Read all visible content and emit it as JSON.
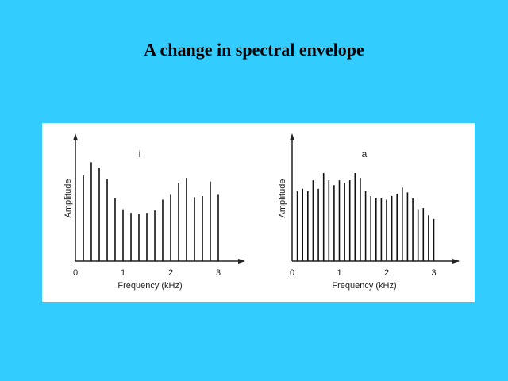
{
  "slide": {
    "title": "A change in spectral envelope",
    "background": "#33ccff"
  },
  "chart_data": [
    {
      "type": "bar",
      "panel_label": "i",
      "xlabel": "Frequency (kHz)",
      "ylabel": "Amplitude",
      "xlim": [
        0,
        3.5
      ],
      "ylim": [
        0,
        10
      ],
      "xticks": [
        "0",
        "1",
        "2",
        "3"
      ],
      "x": [
        0.167,
        0.333,
        0.5,
        0.667,
        0.833,
        1.0,
        1.167,
        1.333,
        1.5,
        1.667,
        1.833,
        2.0,
        2.167,
        2.333,
        2.5,
        2.667,
        2.833,
        3.0
      ],
      "values": [
        7.1,
        8.2,
        7.7,
        6.8,
        5.2,
        4.3,
        4.0,
        3.9,
        4.0,
        4.2,
        5.1,
        5.5,
        6.5,
        6.9,
        5.3,
        5.4,
        6.6,
        5.5
      ]
    },
    {
      "type": "bar",
      "panel_label": "a",
      "xlabel": "Frequency (kHz)",
      "ylabel": "Amplitude",
      "xlim": [
        0,
        3.5
      ],
      "ylim": [
        0,
        10
      ],
      "xticks": [
        "0",
        "1",
        "2",
        "3"
      ],
      "x": [
        0.111,
        0.222,
        0.333,
        0.444,
        0.556,
        0.667,
        0.778,
        0.889,
        1.0,
        1.111,
        1.222,
        1.333,
        1.444,
        1.556,
        1.667,
        1.778,
        1.889,
        2.0,
        2.111,
        2.222,
        2.333,
        2.444,
        2.556,
        2.667,
        2.778,
        2.889,
        3.0
      ],
      "values": [
        5.8,
        6.0,
        5.8,
        6.7,
        6.0,
        7.3,
        6.7,
        6.3,
        6.7,
        6.5,
        6.7,
        7.3,
        6.9,
        5.8,
        5.4,
        5.2,
        5.2,
        5.1,
        5.4,
        5.6,
        6.1,
        5.7,
        5.2,
        4.3,
        4.4,
        3.8,
        3.5
      ]
    }
  ]
}
